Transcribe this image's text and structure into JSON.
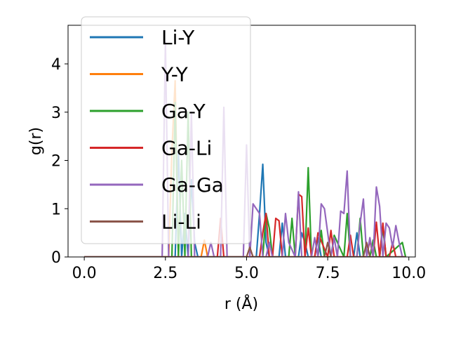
{
  "chart_data": {
    "type": "line",
    "xlabel": "r (Å)",
    "ylabel": "g(r)",
    "xlim": [
      -0.5,
      10.2
    ],
    "ylim": [
      0,
      4.8
    ],
    "xticks": [
      "0.0",
      "2.5",
      "5.0",
      "7.5",
      "10.0"
    ],
    "yticks": [
      "0",
      "1",
      "2",
      "3",
      "4"
    ],
    "legend_position": "upper-left",
    "series": [
      {
        "name": "Li-Y",
        "color": "#1f77b4",
        "x": [
          0.0,
          2.8,
          2.9,
          3.0,
          3.1,
          3.2,
          3.3,
          3.4,
          3.5,
          5.3,
          5.4,
          5.5,
          5.6,
          5.7,
          6.0,
          6.1,
          6.2,
          6.6,
          6.7,
          6.8,
          6.9,
          7.1,
          7.2,
          7.3,
          7.4,
          8.3,
          8.4,
          8.5,
          8.6,
          9.1,
          9.2,
          9.3,
          9.9
        ],
        "values": [
          0,
          0,
          2.2,
          0,
          0.9,
          0,
          1.6,
          0.3,
          0,
          0,
          0.9,
          1.92,
          0.3,
          0,
          0,
          0.7,
          0,
          0,
          0.5,
          0.3,
          0,
          0,
          0.4,
          0,
          0,
          0,
          0.5,
          0,
          0,
          0,
          0.6,
          0,
          0
        ]
      },
      {
        "name": "Y-Y",
        "color": "#ff7f0e",
        "x": [
          0.0,
          2.6,
          2.7,
          2.8,
          2.9,
          3.6,
          3.7,
          3.8,
          9.9
        ],
        "values": [
          0,
          0,
          2.2,
          3.65,
          0,
          0,
          0.35,
          0,
          0
        ]
      },
      {
        "name": "Ga-Y",
        "color": "#2ca02c",
        "x": [
          0.0,
          2.7,
          2.8,
          2.9,
          3.0,
          3.1,
          3.2,
          3.3,
          5.5,
          5.6,
          5.7,
          5.8,
          6.3,
          6.4,
          6.5,
          6.8,
          6.9,
          7.0,
          7.2,
          7.3,
          7.4,
          7.6,
          7.7,
          8.0,
          8.1,
          8.2,
          8.4,
          8.5,
          8.6,
          8.8,
          8.9,
          9.0,
          9.1,
          9.2,
          9.3,
          9.8,
          9.9
        ],
        "values": [
          0,
          0,
          3.2,
          0,
          2.0,
          0,
          3.0,
          0,
          0,
          0.9,
          0.6,
          0,
          0,
          0.8,
          0,
          0,
          1.85,
          0,
          0,
          0.55,
          0,
          0,
          0.45,
          0,
          0.9,
          0,
          0,
          0.8,
          0,
          0,
          0.35,
          0,
          0,
          0.65,
          0,
          0.3,
          0
        ]
      },
      {
        "name": "Ga-Li",
        "color": "#d62728",
        "x": [
          0.0,
          4.1,
          4.2,
          4.3,
          5.4,
          5.5,
          5.6,
          5.7,
          5.8,
          5.9,
          6.0,
          6.1,
          6.5,
          6.6,
          6.7,
          6.8,
          6.9,
          7.0,
          7.1,
          7.2,
          7.5,
          7.6,
          7.7,
          8.1,
          8.2,
          8.3,
          8.7,
          8.8,
          8.9,
          9.0,
          9.1,
          9.2,
          9.3,
          9.4,
          9.5,
          9.6,
          9.9
        ],
        "values": [
          0,
          0,
          0.8,
          0,
          0,
          0.5,
          0.9,
          0,
          0,
          0.8,
          0.75,
          0,
          0,
          1.3,
          1.25,
          0,
          0.6,
          0,
          0,
          0.5,
          0,
          0.55,
          0,
          0,
          0.45,
          0,
          0,
          0.35,
          0,
          0.72,
          0,
          0.7,
          0,
          0,
          0.3,
          0,
          0
        ]
      },
      {
        "name": "Ga-Ga",
        "color": "#9467bd",
        "x": [
          0.0,
          2.4,
          2.5,
          2.6,
          2.7,
          3.2,
          3.3,
          3.4,
          3.8,
          3.9,
          4.0,
          4.2,
          4.3,
          4.4,
          4.5,
          4.9,
          5.0,
          5.1,
          5.2,
          5.3,
          5.4,
          5.5,
          5.6,
          5.7,
          5.8,
          5.9,
          6.1,
          6.2,
          6.3,
          6.5,
          6.6,
          6.7,
          6.8,
          7.0,
          7.1,
          7.2,
          7.3,
          7.4,
          7.6,
          7.7,
          7.8,
          7.9,
          8.0,
          8.1,
          8.2,
          8.4,
          8.5,
          8.6,
          8.7,
          8.8,
          8.9,
          9.0,
          9.1,
          9.2,
          9.3,
          9.4,
          9.5,
          9.6,
          9.7,
          9.8,
          9.9
        ],
        "values": [
          0,
          0,
          4.45,
          0,
          0,
          0,
          3.0,
          0,
          0,
          0.3,
          0,
          0,
          3.1,
          0,
          0,
          0,
          2.32,
          0,
          1.1,
          1.0,
          0.9,
          0,
          0,
          0.3,
          0,
          0,
          0,
          0.9,
          0.3,
          0,
          1.35,
          0,
          0,
          0,
          0.4,
          0,
          1.1,
          1.0,
          0,
          0.4,
          0,
          0.95,
          0.9,
          1.78,
          0,
          0,
          0.7,
          1.2,
          0,
          0.4,
          0,
          1.45,
          1.05,
          0,
          0.7,
          0.6,
          0.2,
          0.65,
          0.3,
          0,
          0
        ]
      },
      {
        "name": "Li-Li",
        "color": "#8c564b",
        "x": [
          0.0,
          5.0,
          5.1,
          5.2,
          7.4,
          7.5,
          7.6,
          8.6,
          8.7,
          8.8,
          9.9
        ],
        "values": [
          0,
          0,
          0.2,
          0,
          0,
          0.3,
          0,
          0,
          0.3,
          0,
          0
        ]
      }
    ]
  }
}
